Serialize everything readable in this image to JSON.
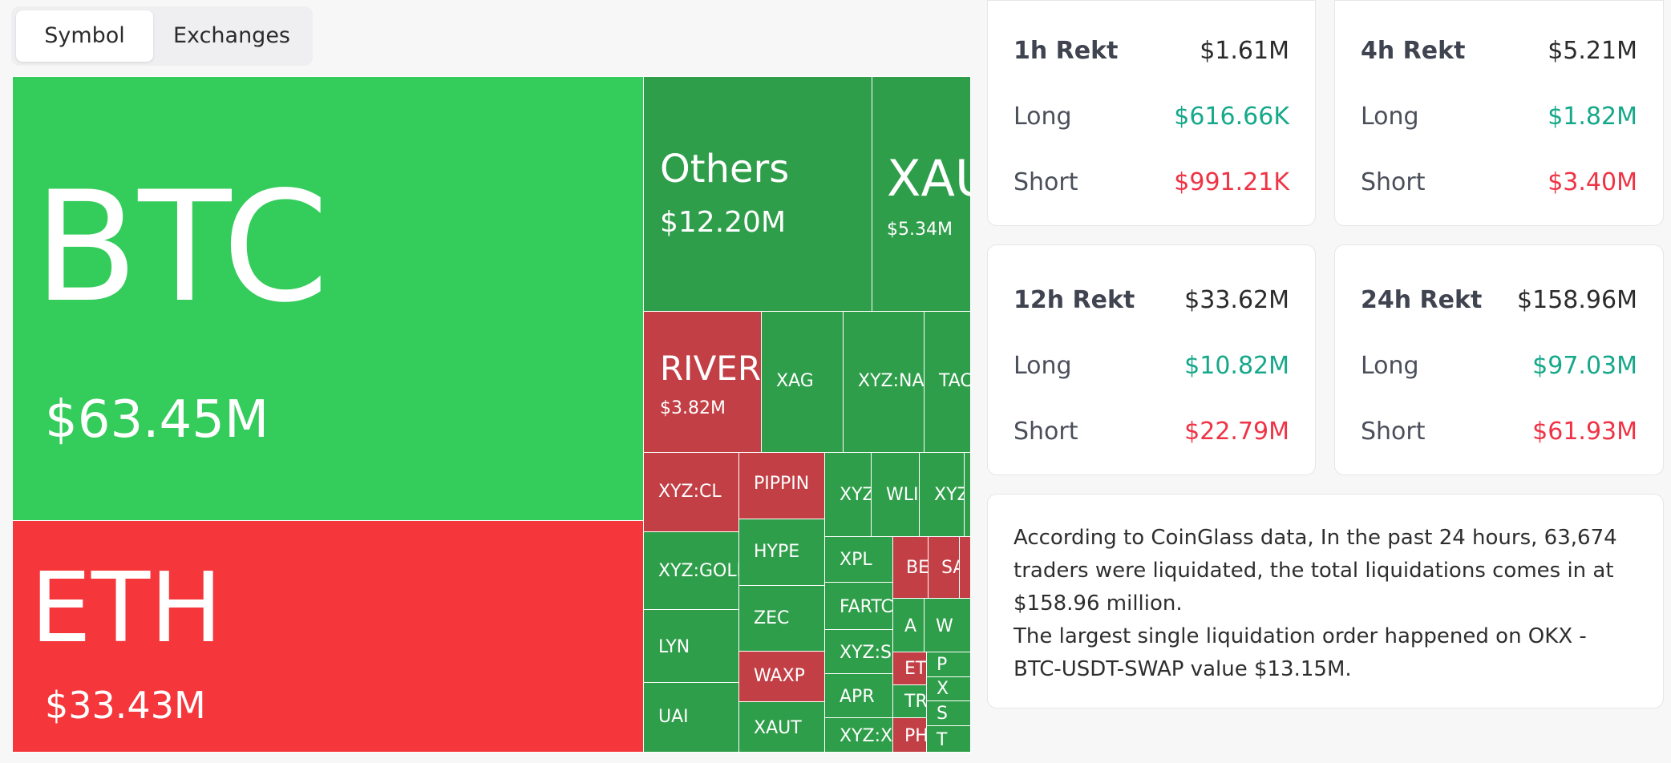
{
  "tabs": [
    {
      "label": "Symbol",
      "active": true
    },
    {
      "label": "Exchanges",
      "active": false
    }
  ],
  "treemap": [
    {
      "name": "BTC",
      "value": "$63.45M",
      "side": "long"
    },
    {
      "name": "ETH",
      "value": "$33.43M",
      "side": "short"
    },
    {
      "name": "Others",
      "value": "$12.20M",
      "side": "long"
    },
    {
      "name": "XAU",
      "value": "$5.34M",
      "side": "long"
    },
    {
      "name": "RIVER",
      "value": "$3.82M",
      "side": "short"
    },
    {
      "name": "XAG",
      "side": "long"
    },
    {
      "name": "XYZ:NA",
      "side": "long"
    },
    {
      "name": "TAC",
      "side": "long"
    },
    {
      "name": "XYZ:CL",
      "side": "short"
    },
    {
      "name": "PIPPIN",
      "side": "short"
    },
    {
      "name": "XYZ",
      "side": "long"
    },
    {
      "name": "WLI",
      "side": "long"
    },
    {
      "name": "XYZ",
      "side": "long"
    },
    {
      "name": "XYZ:GOLD",
      "side": "long"
    },
    {
      "name": "HYPE",
      "side": "long"
    },
    {
      "name": "XPL",
      "side": "long"
    },
    {
      "name": "BE",
      "side": "short"
    },
    {
      "name": "SA",
      "side": "short"
    },
    {
      "name": "ZEC",
      "side": "long"
    },
    {
      "name": "FARTC",
      "side": "long"
    },
    {
      "name": "LYN",
      "side": "long"
    },
    {
      "name": "A",
      "side": "long"
    },
    {
      "name": "W",
      "side": "long"
    },
    {
      "name": "XYZ:S",
      "side": "long"
    },
    {
      "name": "WAXP",
      "side": "short"
    },
    {
      "name": "ETH",
      "side": "short"
    },
    {
      "name": "P",
      "side": "long"
    },
    {
      "name": "APR",
      "side": "long"
    },
    {
      "name": "X",
      "side": "long"
    },
    {
      "name": "UAI",
      "side": "long"
    },
    {
      "name": "TRU",
      "side": "long"
    },
    {
      "name": "S",
      "side": "long"
    },
    {
      "name": "XAUT",
      "side": "long"
    },
    {
      "name": "XYZ:X",
      "side": "long"
    },
    {
      "name": "PH",
      "side": "short"
    },
    {
      "name": "T",
      "side": "long"
    }
  ],
  "stats": [
    {
      "title": "1h Rekt",
      "total": "$1.61M",
      "long_label": "Long",
      "long": "$616.66K",
      "short_label": "Short",
      "short": "$991.21K"
    },
    {
      "title": "4h Rekt",
      "total": "$5.21M",
      "long_label": "Long",
      "long": "$1.82M",
      "short_label": "Short",
      "short": "$3.40M"
    },
    {
      "title": "12h Rekt",
      "total": "$33.62M",
      "long_label": "Long",
      "long": "$10.82M",
      "short_label": "Short",
      "short": "$22.79M"
    },
    {
      "title": "24h Rekt",
      "total": "$158.96M",
      "long_label": "Long",
      "long": "$97.03M",
      "short_label": "Short",
      "short": "$61.93M"
    }
  ],
  "summary": {
    "line1": "According to CoinGlass data, In the past 24 hours, 63,674 traders were liquidated, the total liquidations comes in at $158.96 million.",
    "line2": "The largest single liquidation order happened on OKX - BTC-USDT-SWAP value $13.15M."
  },
  "colors": {
    "long_text": "#16a88a",
    "short_text": "#ef3345",
    "cell_long_big": "#34cc5a",
    "cell_long": "#2f9e4a",
    "cell_short_big": "#f5363a",
    "cell_short": "#c23f45"
  }
}
